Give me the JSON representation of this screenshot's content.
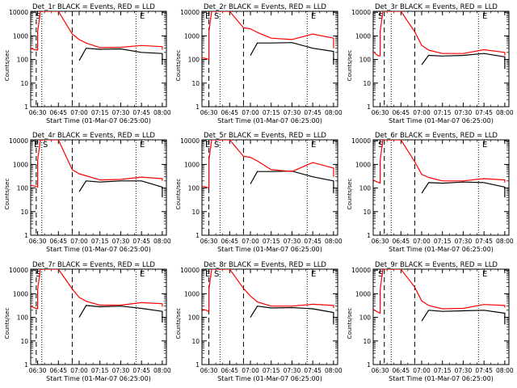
{
  "colors": {
    "events": "#000000",
    "lld": "#ff0000",
    "axes": "#000000",
    "background": "#ffffff"
  },
  "xlabel": "Start Time (01-Mar-07 06:25:00)",
  "ylabel": "Counts/sec",
  "xtick_labels": [
    "06:30",
    "06:45",
    "07:00",
    "07:15",
    "07:30",
    "07:45",
    "08:00"
  ],
  "ytick_labels": [
    "1",
    "10",
    "100",
    "1000",
    "10000"
  ],
  "chart_data": [
    {
      "type": "line",
      "title": "Det_1r BLACK = Events, RED = LLD",
      "annotations": [
        "S",
        "E"
      ],
      "xlim": [
        "06:25",
        "08:03"
      ],
      "ylim": [
        1,
        11000
      ],
      "y_scale": "log",
      "markers_dashed": [
        "06:29",
        "06:55"
      ],
      "markers_dotted": [
        "06:33",
        "07:41"
      ],
      "x": [
        "06:25",
        "06:28",
        "06:30",
        "06:30",
        "06:32",
        "06:35",
        "06:40",
        "06:45",
        "06:55",
        "07:00",
        "07:05",
        "07:15",
        "07:30",
        "07:45",
        "08:00",
        "08:00"
      ],
      "series": [
        {
          "name": "Events",
          "values": [
            null,
            null,
            null,
            null,
            null,
            null,
            null,
            null,
            null,
            90,
            300,
            270,
            280,
            200,
            180,
            60
          ]
        },
        {
          "name": "LLD",
          "values": [
            300,
            260,
            250,
            1500,
            11000,
            11000,
            11000,
            11000,
            1200,
            700,
            500,
            320,
            330,
            390,
            350,
            260
          ]
        }
      ]
    },
    {
      "type": "line",
      "title": "Det_2r BLACK = Events, RED = LLD",
      "annotations": [
        "E",
        "S",
        "E"
      ],
      "xlim": [
        "06:25",
        "08:03"
      ],
      "ylim": [
        1,
        11000
      ],
      "y_scale": "log",
      "markers_dashed": [
        "06:30",
        "06:55"
      ],
      "markers_dotted": [
        "06:38",
        "07:41"
      ],
      "x": [
        "06:25",
        "06:28",
        "06:30",
        "06:30",
        "06:32",
        "06:35",
        "06:40",
        "06:45",
        "06:55",
        "07:00",
        "07:05",
        "07:15",
        "07:30",
        "07:45",
        "08:00",
        "08:00"
      ],
      "series": [
        {
          "name": "Events",
          "values": [
            null,
            null,
            null,
            null,
            null,
            null,
            null,
            null,
            null,
            150,
            500,
            500,
            520,
            300,
            220,
            60
          ]
        },
        {
          "name": "LLD",
          "values": [
            120,
            110,
            100,
            1500,
            11000,
            11000,
            11000,
            11000,
            2200,
            2000,
            1400,
            800,
            700,
            1200,
            800,
            300
          ]
        }
      ]
    },
    {
      "type": "line",
      "title": "Det_3r BLACK = Events, RED = LLD",
      "annotations": [
        "S",
        "E"
      ],
      "xlim": [
        "06:25",
        "08:03"
      ],
      "ylim": [
        1,
        11000
      ],
      "y_scale": "log",
      "markers_dashed": [
        "06:33",
        "06:55"
      ],
      "markers_dotted": [
        "06:38",
        "07:41"
      ],
      "x": [
        "06:25",
        "06:28",
        "06:30",
        "06:30",
        "06:32",
        "06:35",
        "06:40",
        "06:45",
        "06:55",
        "07:00",
        "07:05",
        "07:15",
        "07:30",
        "07:45",
        "08:00",
        "08:00"
      ],
      "series": [
        {
          "name": "Events",
          "values": [
            null,
            null,
            null,
            null,
            null,
            null,
            null,
            null,
            null,
            60,
            150,
            140,
            150,
            180,
            130,
            40
          ]
        },
        {
          "name": "LLD",
          "values": [
            220,
            150,
            140,
            1500,
            11000,
            11000,
            11000,
            11000,
            1500,
            400,
            250,
            180,
            180,
            260,
            200,
            150
          ]
        }
      ]
    },
    {
      "type": "line",
      "title": "Det_4r BLACK = Events, RED = LLD",
      "annotations": [
        "E",
        "S",
        "E"
      ],
      "xlim": [
        "06:25",
        "08:03"
      ],
      "ylim": [
        1,
        11000
      ],
      "y_scale": "log",
      "markers_dashed": [
        "06:29",
        "06:55"
      ],
      "markers_dotted": [
        "06:33",
        "07:41"
      ],
      "x": [
        "06:25",
        "06:28",
        "06:30",
        "06:30",
        "06:32",
        "06:35",
        "06:40",
        "06:45",
        "06:55",
        "07:00",
        "07:05",
        "07:15",
        "07:30",
        "07:45",
        "08:00",
        "08:00"
      ],
      "series": [
        {
          "name": "Events",
          "values": [
            null,
            null,
            null,
            null,
            null,
            null,
            null,
            null,
            null,
            70,
            200,
            180,
            200,
            200,
            110,
            40
          ]
        },
        {
          "name": "LLD",
          "values": [
            130,
            120,
            110,
            1500,
            11000,
            11000,
            11000,
            11000,
            600,
            400,
            330,
            220,
            230,
            290,
            250,
            200
          ]
        }
      ]
    },
    {
      "type": "line",
      "title": "Det_5r BLACK = Events, RED = LLD",
      "annotations": [
        "E",
        "S",
        "E"
      ],
      "xlim": [
        "06:25",
        "08:03"
      ],
      "ylim": [
        1,
        11000
      ],
      "y_scale": "log",
      "markers_dashed": [
        "06:30",
        "06:55"
      ],
      "markers_dotted": [
        "06:38",
        "07:41"
      ],
      "x": [
        "06:25",
        "06:28",
        "06:30",
        "06:30",
        "06:32",
        "06:35",
        "06:40",
        "06:45",
        "06:55",
        "07:00",
        "07:05",
        "07:15",
        "07:30",
        "07:45",
        "08:00",
        "08:00"
      ],
      "series": [
        {
          "name": "Events",
          "values": [
            null,
            null,
            null,
            null,
            null,
            null,
            null,
            null,
            null,
            150,
            500,
            500,
            520,
            300,
            200,
            60
          ]
        },
        {
          "name": "LLD",
          "values": [
            120,
            110,
            100,
            1500,
            11000,
            11000,
            11000,
            11000,
            2200,
            2000,
            1400,
            600,
            500,
            1200,
            700,
            300
          ]
        }
      ]
    },
    {
      "type": "line",
      "title": "Det_6r BLACK = Events, RED = LLD",
      "annotations": [
        "S",
        "E"
      ],
      "xlim": [
        "06:25",
        "08:03"
      ],
      "ylim": [
        1,
        11000
      ],
      "y_scale": "log",
      "markers_dashed": [
        "06:33",
        "06:55"
      ],
      "markers_dotted": [
        "06:38",
        "07:41"
      ],
      "x": [
        "06:25",
        "06:28",
        "06:30",
        "06:30",
        "06:32",
        "06:35",
        "06:40",
        "06:45",
        "06:55",
        "07:00",
        "07:05",
        "07:15",
        "07:30",
        "07:45",
        "08:00",
        "08:00"
      ],
      "series": [
        {
          "name": "Events",
          "values": [
            null,
            null,
            null,
            null,
            null,
            null,
            null,
            null,
            null,
            60,
            170,
            160,
            180,
            170,
            110,
            40
          ]
        },
        {
          "name": "LLD",
          "values": [
            220,
            180,
            160,
            1500,
            11000,
            11000,
            11000,
            11000,
            1300,
            380,
            280,
            200,
            200,
            250,
            220,
            170
          ]
        }
      ]
    },
    {
      "type": "line",
      "title": "Det_7r BLACK = Events, RED = LLD",
      "annotations": [
        "S",
        "E"
      ],
      "xlim": [
        "06:25",
        "08:03"
      ],
      "ylim": [
        1,
        11000
      ],
      "y_scale": "log",
      "markers_dashed": [
        "06:29",
        "06:55"
      ],
      "markers_dotted": [
        "06:33",
        "07:41"
      ],
      "x": [
        "06:25",
        "06:28",
        "06:30",
        "06:30",
        "06:32",
        "06:35",
        "06:40",
        "06:45",
        "06:55",
        "07:00",
        "07:05",
        "07:15",
        "07:30",
        "07:45",
        "08:00",
        "08:00"
      ],
      "series": [
        {
          "name": "Events",
          "values": [
            null,
            null,
            null,
            null,
            null,
            null,
            null,
            null,
            null,
            100,
            320,
            280,
            300,
            240,
            180,
            60
          ]
        },
        {
          "name": "LLD",
          "values": [
            300,
            250,
            230,
            1500,
            11000,
            11000,
            11000,
            11000,
            1600,
            700,
            480,
            330,
            330,
            420,
            380,
            280
          ]
        }
      ]
    },
    {
      "type": "line",
      "title": "Det_8r BLACK = Events, RED = LLD",
      "annotations": [
        "E",
        "S",
        "E"
      ],
      "xlim": [
        "06:25",
        "08:03"
      ],
      "ylim": [
        1,
        11000
      ],
      "y_scale": "log",
      "markers_dashed": [
        "06:30",
        "06:55"
      ],
      "markers_dotted": [
        "06:38",
        "07:41"
      ],
      "x": [
        "06:25",
        "06:28",
        "06:30",
        "06:30",
        "06:32",
        "06:35",
        "06:40",
        "06:45",
        "06:55",
        "07:00",
        "07:05",
        "07:15",
        "07:30",
        "07:45",
        "08:00",
        "08:00"
      ],
      "series": [
        {
          "name": "Events",
          "values": [
            null,
            null,
            null,
            null,
            null,
            null,
            null,
            null,
            null,
            100,
            300,
            250,
            260,
            230,
            160,
            50
          ]
        },
        {
          "name": "LLD",
          "values": [
            220,
            200,
            180,
            1500,
            11000,
            11000,
            11000,
            11000,
            1700,
            800,
            450,
            300,
            300,
            360,
            320,
            250
          ]
        }
      ]
    },
    {
      "type": "line",
      "title": "Det_9r BLACK = Events, RED = LLD",
      "annotations": [
        "S",
        "E"
      ],
      "xlim": [
        "06:25",
        "08:03"
      ],
      "ylim": [
        1,
        11000
      ],
      "y_scale": "log",
      "markers_dashed": [
        "06:33",
        "06:55"
      ],
      "markers_dotted": [
        "06:38",
        "07:41"
      ],
      "x": [
        "06:25",
        "06:28",
        "06:30",
        "06:30",
        "06:32",
        "06:35",
        "06:40",
        "06:45",
        "06:55",
        "07:00",
        "07:05",
        "07:15",
        "07:30",
        "07:45",
        "08:00",
        "08:00"
      ],
      "series": [
        {
          "name": "Events",
          "values": [
            null,
            null,
            null,
            null,
            null,
            null,
            null,
            null,
            null,
            70,
            200,
            180,
            190,
            200,
            150,
            50
          ]
        },
        {
          "name": "LLD",
          "values": [
            220,
            170,
            150,
            1500,
            11000,
            11000,
            11000,
            11000,
            1900,
            500,
            320,
            230,
            240,
            350,
            320,
            260
          ]
        }
      ]
    }
  ]
}
